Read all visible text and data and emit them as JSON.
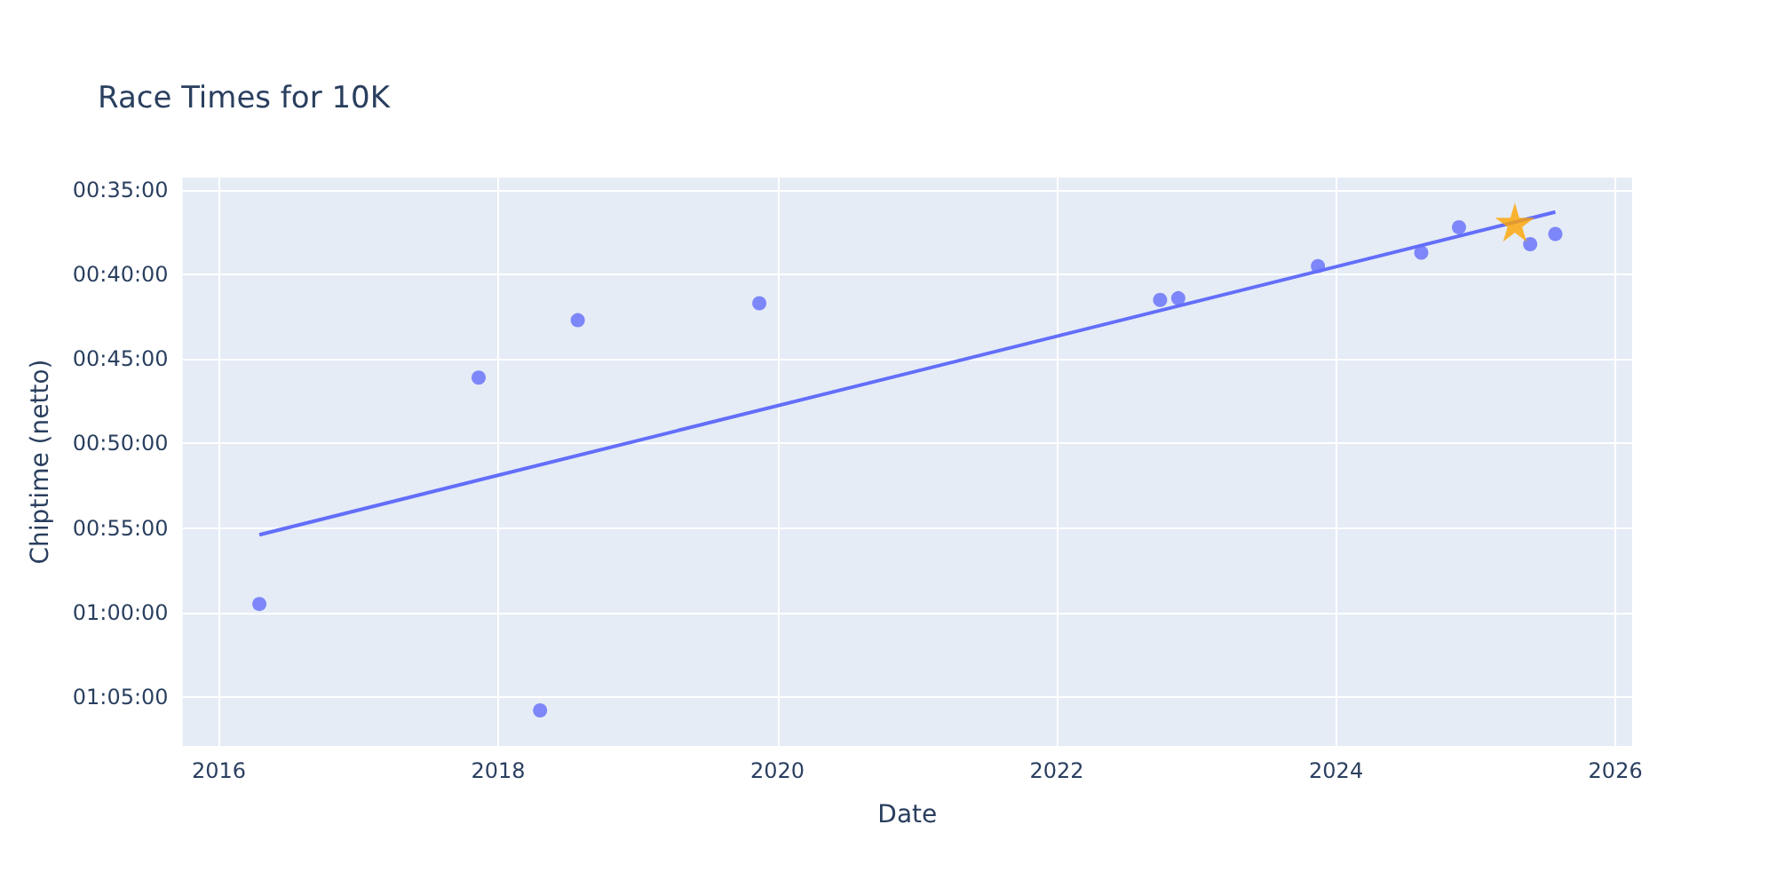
{
  "chart_data": {
    "type": "scatter",
    "title": "Race Times for 10K",
    "xlabel": "Date",
    "ylabel": "Chiptime (netto)",
    "xlim": [
      2015.74,
      2026.12
    ],
    "xticks": [
      2016,
      2018,
      2020,
      2022,
      2024,
      2026
    ],
    "ylim": [
      67.9,
      34.26
    ],
    "yticks": [
      {
        "value": 35,
        "label": "00:35:00"
      },
      {
        "value": 40,
        "label": "00:40:00"
      },
      {
        "value": 45,
        "label": "00:45:00"
      },
      {
        "value": 50,
        "label": "00:50:00"
      },
      {
        "value": 55,
        "label": "00:55:00"
      },
      {
        "value": 60,
        "label": "01:00:00"
      },
      {
        "value": 65,
        "label": "01:05:00"
      }
    ],
    "grid": true,
    "series": [
      {
        "marker": "circle",
        "color": "#636efa",
        "x": [
          2016.29,
          2017.86,
          2018.3,
          2018.57,
          2019.87,
          2022.74,
          2022.87,
          2023.87,
          2024.61,
          2024.88,
          2025.39,
          2025.57
        ],
        "values": [
          59.5,
          46.1,
          65.8,
          42.7,
          41.7,
          41.5,
          41.4,
          39.5,
          38.7,
          37.2,
          38.2,
          37.6
        ]
      },
      {
        "type": "line",
        "marker": "none",
        "color": "#636efa",
        "x": [
          2016.29,
          2025.57
        ],
        "values": [
          55.4,
          36.3
        ]
      },
      {
        "marker": "star",
        "color": "#ffa500",
        "x": [
          2025.28
        ],
        "values": [
          36.9
        ]
      }
    ]
  }
}
